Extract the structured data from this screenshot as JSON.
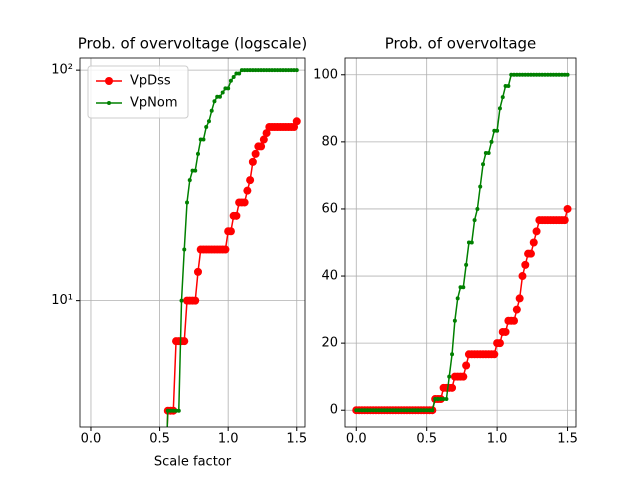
{
  "chart_data": [
    {
      "type": "line",
      "title": "Prob. of overvoltage (logscale)",
      "xlabel": "Scale factor",
      "yscale": "log",
      "grid": true,
      "legend": "upper left",
      "xlim": [
        -0.08,
        1.56
      ],
      "ylim": [
        2.83,
        112.9
      ],
      "xticks": [
        {
          "value": 0,
          "label": "0.0"
        },
        0.5,
        {
          "value": 1,
          "label": "1.0"
        },
        1.5
      ],
      "yticks": [
        {
          "value": 10,
          "label": "10¹"
        },
        {
          "value": 100,
          "label": "10²"
        }
      ],
      "x": [
        0,
        0.02,
        0.04,
        0.06,
        0.08,
        0.1,
        0.12,
        0.14,
        0.16,
        0.18,
        0.2,
        0.22,
        0.24,
        0.26,
        0.28,
        0.3,
        0.32,
        0.34,
        0.36,
        0.38,
        0.4,
        0.42,
        0.44,
        0.46,
        0.48,
        0.5,
        0.52,
        0.54,
        0.56,
        0.58,
        0.6,
        0.62,
        0.64,
        0.66,
        0.68,
        0.7,
        0.72,
        0.74,
        0.76,
        0.78,
        0.8,
        0.82,
        0.84,
        0.86,
        0.88,
        0.9,
        0.92,
        0.94,
        0.96,
        0.98,
        1,
        1.02,
        1.04,
        1.06,
        1.08,
        1.1,
        1.12,
        1.14,
        1.16,
        1.18,
        1.2,
        1.22,
        1.24,
        1.26,
        1.28,
        1.3,
        1.32,
        1.34,
        1.36,
        1.38,
        1.4,
        1.42,
        1.44,
        1.46,
        1.48,
        1.5
      ],
      "series": [
        {
          "name": "VpDss",
          "color": "#ff0000",
          "values": [
            0,
            0,
            0,
            0,
            0,
            0,
            0,
            0,
            0,
            0,
            0,
            0,
            0,
            0,
            0,
            0,
            0,
            0,
            0,
            0,
            0,
            0,
            0,
            0,
            0,
            0,
            0,
            0,
            3.33,
            3.33,
            3.33,
            6.67,
            6.67,
            6.67,
            6.67,
            10,
            10,
            10,
            10,
            13.33,
            16.67,
            16.67,
            16.67,
            16.67,
            16.67,
            16.67,
            16.67,
            16.67,
            16.67,
            16.67,
            20,
            20,
            23.33,
            23.33,
            26.67,
            26.67,
            26.67,
            30,
            33.33,
            40,
            43.33,
            46.67,
            46.67,
            50,
            53.33,
            56.67,
            56.67,
            56.67,
            56.67,
            56.67,
            56.67,
            56.67,
            56.67,
            56.67,
            56.67,
            60
          ]
        },
        {
          "name": "VpNom",
          "color": "#008000",
          "values": [
            0,
            0,
            0,
            0,
            0,
            0,
            0,
            0,
            0,
            0,
            0,
            0,
            0,
            0,
            0,
            0,
            0,
            0,
            0,
            0,
            0,
            0,
            0,
            0,
            0,
            0,
            0,
            0,
            3.33,
            3.33,
            3.33,
            3.33,
            3.33,
            10,
            16.67,
            26.67,
            33.33,
            36.67,
            36.67,
            43.33,
            50,
            50,
            56.67,
            60,
            66.67,
            73.33,
            76.67,
            76.67,
            80,
            83.33,
            83.33,
            90,
            93.33,
            96.67,
            96.67,
            100,
            100,
            100,
            100,
            100,
            100,
            100,
            100,
            100,
            100,
            100,
            100,
            100,
            100,
            100,
            100,
            100,
            100,
            100,
            100,
            100
          ]
        }
      ]
    },
    {
      "type": "line",
      "title": "Prob. of overvoltage",
      "grid": true,
      "xlim": [
        -0.08,
        1.56
      ],
      "ylim": [
        -5,
        105
      ],
      "xticks": [
        {
          "value": 0,
          "label": "0.0"
        },
        0.5,
        {
          "value": 1,
          "label": "1.0"
        },
        1.5
      ],
      "yticks": [
        0,
        20,
        40,
        60,
        80,
        100
      ],
      "x": [
        0,
        0.02,
        0.04,
        0.06,
        0.08,
        0.1,
        0.12,
        0.14,
        0.16,
        0.18,
        0.2,
        0.22,
        0.24,
        0.26,
        0.28,
        0.3,
        0.32,
        0.34,
        0.36,
        0.38,
        0.4,
        0.42,
        0.44,
        0.46,
        0.48,
        0.5,
        0.52,
        0.54,
        0.56,
        0.58,
        0.6,
        0.62,
        0.64,
        0.66,
        0.68,
        0.7,
        0.72,
        0.74,
        0.76,
        0.78,
        0.8,
        0.82,
        0.84,
        0.86,
        0.88,
        0.9,
        0.92,
        0.94,
        0.96,
        0.98,
        1,
        1.02,
        1.04,
        1.06,
        1.08,
        1.1,
        1.12,
        1.14,
        1.16,
        1.18,
        1.2,
        1.22,
        1.24,
        1.26,
        1.28,
        1.3,
        1.32,
        1.34,
        1.36,
        1.38,
        1.4,
        1.42,
        1.44,
        1.46,
        1.48,
        1.5
      ],
      "series": [
        {
          "name": "VpDss",
          "color": "#ff0000",
          "values": [
            0,
            0,
            0,
            0,
            0,
            0,
            0,
            0,
            0,
            0,
            0,
            0,
            0,
            0,
            0,
            0,
            0,
            0,
            0,
            0,
            0,
            0,
            0,
            0,
            0,
            0,
            0,
            0,
            3.33,
            3.33,
            3.33,
            6.67,
            6.67,
            6.67,
            6.67,
            10,
            10,
            10,
            10,
            13.33,
            16.67,
            16.67,
            16.67,
            16.67,
            16.67,
            16.67,
            16.67,
            16.67,
            16.67,
            16.67,
            20,
            20,
            23.33,
            23.33,
            26.67,
            26.67,
            26.67,
            30,
            33.33,
            40,
            43.33,
            46.67,
            46.67,
            50,
            53.33,
            56.67,
            56.67,
            56.67,
            56.67,
            56.67,
            56.67,
            56.67,
            56.67,
            56.67,
            56.67,
            60
          ]
        },
        {
          "name": "VpNom",
          "color": "#008000",
          "values": [
            0,
            0,
            0,
            0,
            0,
            0,
            0,
            0,
            0,
            0,
            0,
            0,
            0,
            0,
            0,
            0,
            0,
            0,
            0,
            0,
            0,
            0,
            0,
            0,
            0,
            0,
            0,
            0,
            3.33,
            3.33,
            3.33,
            3.33,
            3.33,
            10,
            16.67,
            26.67,
            33.33,
            36.67,
            36.67,
            43.33,
            50,
            50,
            56.67,
            60,
            66.67,
            73.33,
            76.67,
            76.67,
            80,
            83.33,
            83.33,
            90,
            93.33,
            96.67,
            96.67,
            100,
            100,
            100,
            100,
            100,
            100,
            100,
            100,
            100,
            100,
            100,
            100,
            100,
            100,
            100,
            100,
            100,
            100,
            100,
            100,
            100
          ]
        }
      ]
    }
  ]
}
